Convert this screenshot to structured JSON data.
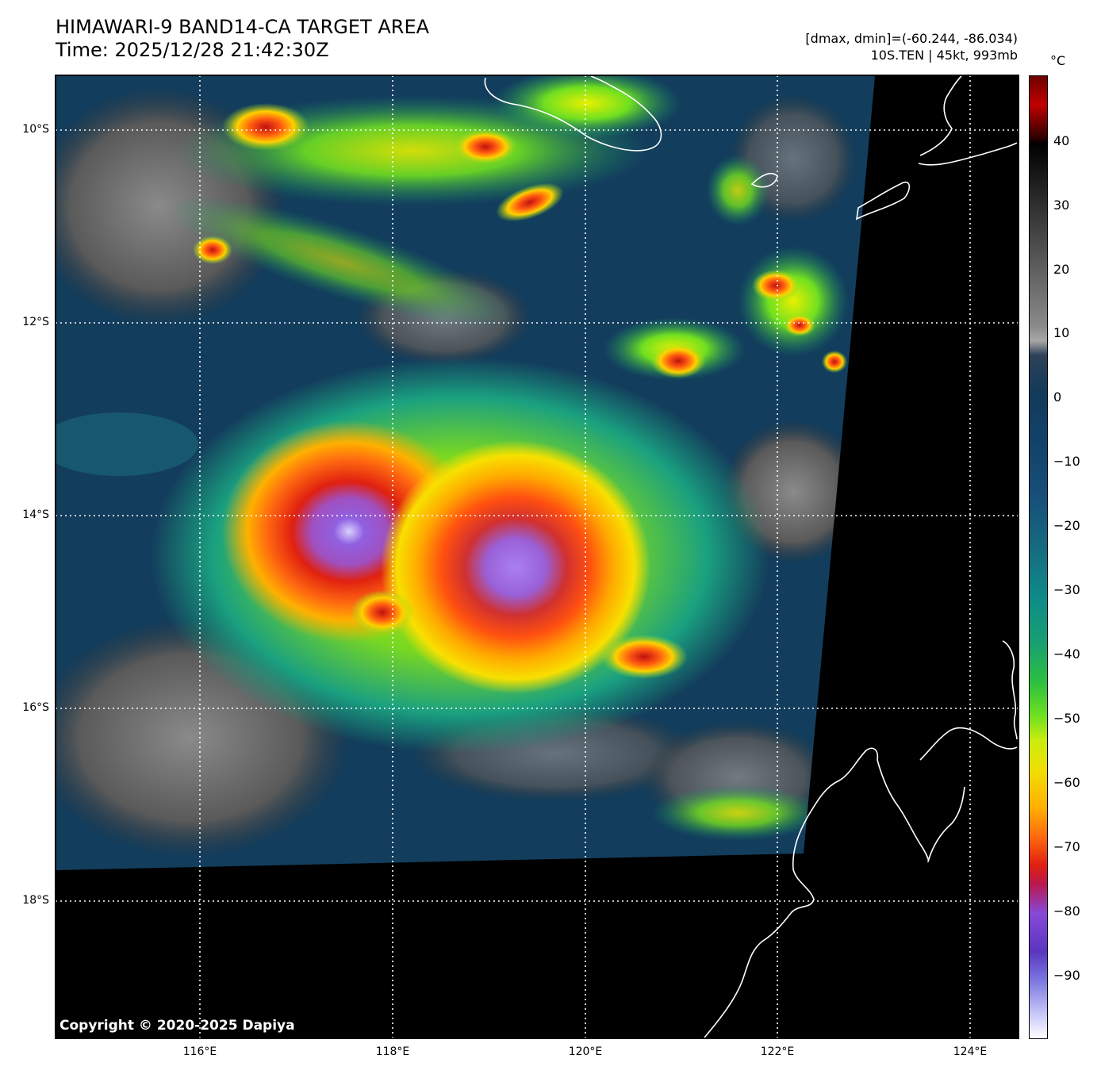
{
  "header": {
    "title": "HIMAWARI-9 BAND14-CA TARGET AREA",
    "time": "Time: 2025/12/28 21:42:30Z",
    "range": "[dmax, dmin]=(-60.244, -86.034)",
    "storm": "10S.TEN | 45kt, 993mb"
  },
  "colorbar": {
    "unit": "°C",
    "ticks": [
      "40",
      "30",
      "20",
      "10",
      "0",
      "−10",
      "−20",
      "−30",
      "−40",
      "−50",
      "−60",
      "−70",
      "−80",
      "−90"
    ],
    "colors": [
      "#6e0000",
      "#000000",
      "#8a8a8a",
      "#12426a",
      "#0e8a8a",
      "#70e020",
      "#ffb000",
      "#e02010",
      "#8848d8",
      "#ffffff"
    ]
  },
  "map": {
    "lat_labels": [
      "10°S",
      "12°S",
      "14°S",
      "16°S",
      "18°S"
    ],
    "lon_labels": [
      "116°E",
      "118°E",
      "120°E",
      "122°E",
      "124°E"
    ],
    "copyright": "Copyright © 2020-2025 Dapiya",
    "features": [
      "cyclone-core-west",
      "cyclone-core-east",
      "coastline-australia",
      "coastline-timor",
      "coastline-sumba"
    ]
  }
}
